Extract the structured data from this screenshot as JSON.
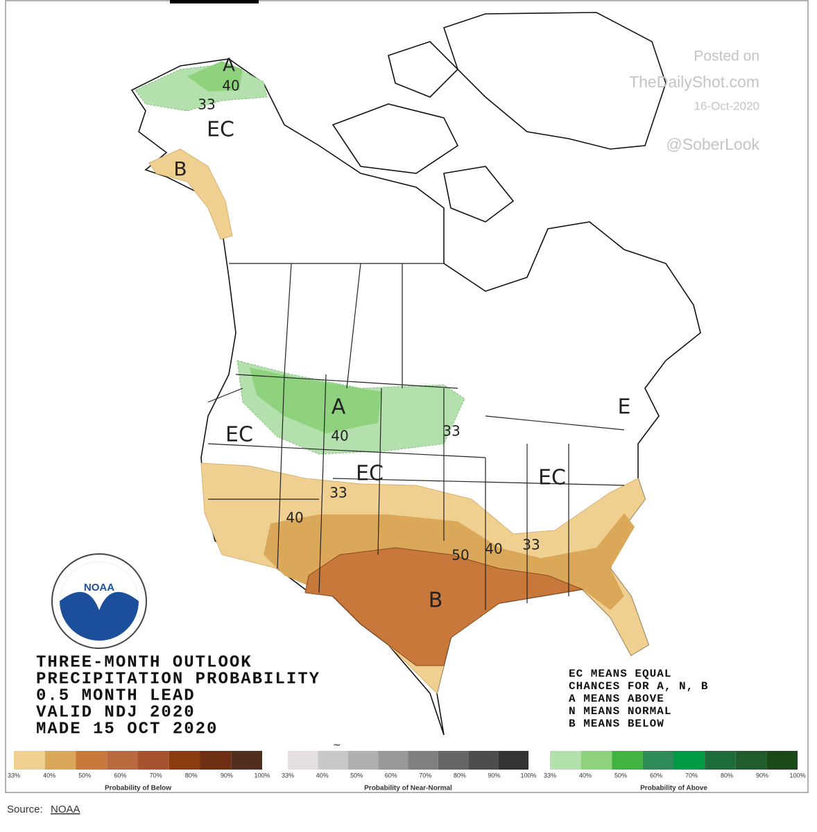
{
  "watermark": [
    "Posted on",
    "TheDailyShot.com",
    "16-Oct-2020",
    "@SoberLook"
  ],
  "map_labels": [
    "A",
    "40",
    "33",
    "EC",
    "B",
    "EC",
    "A",
    "40",
    "33",
    "EC",
    "EC",
    "E",
    "33",
    "40",
    "50",
    "40",
    "33",
    "B"
  ],
  "logo": "NOAA",
  "outlook_title": [
    "THREE-MONTH OUTLOOK",
    "PRECIPITATION PROBABILITY",
    "0.5 MONTH LEAD",
    "VALID NDJ 2020",
    "MADE 15 OCT 2020"
  ],
  "legend_note": [
    "EC MEANS EQUAL",
    "CHANCES FOR A, N, B",
    "A MEANS ABOVE",
    "N MEANS NORMAL",
    "B MEANS BELOW"
  ],
  "color_scales": [
    {
      "caption": "Probability of Below",
      "ticks": [
        "33%",
        "40%",
        "50%",
        "60%",
        "70%",
        "80%",
        "90%",
        "100%"
      ],
      "colors": [
        "#f0d090",
        "#dba85a",
        "#c8783a",
        "#b86a3e",
        "#a5522f",
        "#8a3c10",
        "#6e2f12",
        "#50301c"
      ]
    },
    {
      "caption": "Probability of Near-Normal",
      "ticks": [
        "33%",
        "40%",
        "50%",
        "60%",
        "70%",
        "80%",
        "90%",
        "100%"
      ],
      "colors": [
        "#e6dfe1",
        "#c8c8c8",
        "#b0b0b0",
        "#999999",
        "#808080",
        "#666666",
        "#4d4d4d",
        "#333333"
      ]
    },
    {
      "caption": "Probability of Above",
      "ticks": [
        "33%",
        "40%",
        "50%",
        "60%",
        "70%",
        "80%",
        "90%",
        "100%"
      ],
      "colors": [
        "#b3e0ac",
        "#8fd27d",
        "#40b340",
        "#2e8b57",
        "#009a44",
        "#1e6b3a",
        "#205c2c",
        "#1a4a1a"
      ]
    }
  ],
  "source": {
    "label": "Source:",
    "link": "NOAA"
  }
}
